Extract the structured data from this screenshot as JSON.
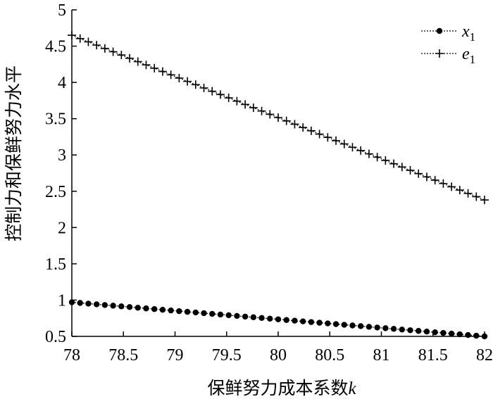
{
  "chart_data": {
    "type": "line",
    "xlabel": "保鲜努力成本系数",
    "xlabel_var": "k",
    "ylabel": "控制力和保鲜努力水平",
    "xlim": [
      78,
      82
    ],
    "ylim": [
      0.5,
      5
    ],
    "xticks": [
      "78",
      "78.5",
      "79",
      "79.5",
      "80",
      "80.5",
      "81",
      "81.5",
      "82"
    ],
    "yticks": [
      "0.5",
      "1",
      "1.5",
      "2",
      "2.5",
      "3",
      "3.5",
      "4",
      "4.5",
      "5"
    ],
    "grid": false,
    "legend_position": "top-right",
    "x_start": 78,
    "x_end": 82,
    "num_points": 51,
    "series": [
      {
        "name": "x1",
        "legend_base": "x",
        "legend_sub": "1",
        "marker": "dot",
        "color": "#000000",
        "start": 0.97,
        "end": 0.5
      },
      {
        "name": "e1",
        "legend_base": "e",
        "legend_sub": "1",
        "marker": "plus",
        "color": "#000000",
        "start": 4.65,
        "end": 2.38
      }
    ]
  }
}
